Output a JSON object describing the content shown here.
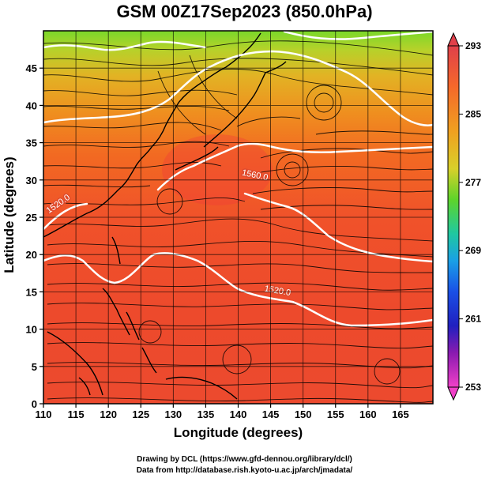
{
  "header": {
    "title": "GSM 00Z17Sep2023 (850.0hPa)"
  },
  "footer": {
    "credit_drawing": "Drawing by DCL (https://www.gfd-dennou.org/library/dcl/)",
    "credit_data": "Data from http://database.rish.kyoto-u.ac.jp/arch/jmadata/"
  },
  "map": {
    "xlabel": "Longitude (degrees)",
    "ylabel": "Latitude  (degrees)",
    "lon_range": [
      110,
      170
    ],
    "lat_range": [
      0,
      50
    ],
    "lon_ticks": [
      110,
      115,
      120,
      125,
      130,
      135,
      140,
      145,
      150,
      155,
      160,
      165
    ],
    "lat_ticks": [
      0,
      5,
      10,
      15,
      20,
      25,
      30,
      35,
      40,
      45
    ],
    "contour_labels": [
      {
        "text": "1560.0",
        "lon": 142.5,
        "lat": 30.3,
        "angle": 12
      },
      {
        "text": "1520.0",
        "lon": 146.0,
        "lat": 14.8,
        "angle": 10
      },
      {
        "text": "1520.0",
        "lon": 112.5,
        "lat": 26.5,
        "angle": -35
      }
    ]
  },
  "colorbar": {
    "tick_labels": [
      "293",
      "285",
      "277",
      "269",
      "261",
      "253"
    ],
    "colors": [
      "#d4004a",
      "#f5622a",
      "#ee8a1e",
      "#e8b82a",
      "#b9d62a",
      "#5ed42a",
      "#20c890",
      "#1aa0e6",
      "#1a5ae6",
      "#2020c0",
      "#7a1ab0",
      "#d21ab4",
      "#f040c8"
    ]
  }
}
